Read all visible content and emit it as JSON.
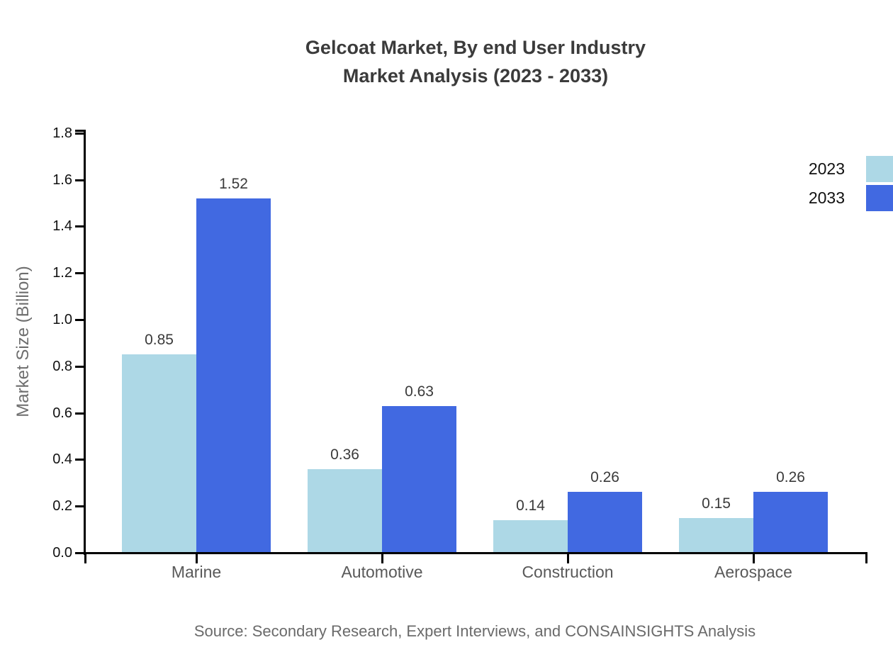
{
  "title": {
    "line1": "Gelcoat Market, By end User Industry",
    "line2": "Market Analysis (2023 - 2033)"
  },
  "legend": {
    "position": "top-right",
    "items": [
      {
        "label": "2023",
        "color": "#ADD8E6"
      },
      {
        "label": "2033",
        "color": "#4169E1"
      }
    ]
  },
  "source": "Source: Secondary Research, Expert Interviews, and CONSAINSIGHTS Analysis",
  "chart_data": {
    "type": "bar",
    "title": "Gelcoat Market, By end User Industry Market Analysis (2023 - 2033)",
    "categories": [
      "Marine",
      "Automotive",
      "Construction",
      "Aerospace"
    ],
    "series": [
      {
        "name": "2023",
        "color": "#ADD8E6",
        "values": [
          0.85,
          0.36,
          0.14,
          0.15
        ]
      },
      {
        "name": "2033",
        "color": "#4169E1",
        "values": [
          1.52,
          0.63,
          0.26,
          0.26
        ]
      }
    ],
    "value_labels": [
      "0.85",
      "1.52",
      "0.36",
      "0.63",
      "0.14",
      "0.26",
      "0.15",
      "0.26"
    ],
    "xlabel": "",
    "ylabel": "Market Size (Billion)",
    "ylim": [
      0.0,
      1.8
    ],
    "ytick_step": 0.2,
    "yticks": [
      "0.0",
      "0.2",
      "0.4",
      "0.6",
      "0.8",
      "1.0",
      "1.2",
      "1.4",
      "1.6",
      "1.8"
    ],
    "grid": false,
    "legend_position": "right"
  },
  "colors": {
    "axis": "#000000",
    "title_text": "#3b3b3b",
    "tick_text": "#111111",
    "category_text": "#595959",
    "muted_text": "#6a6a6a"
  }
}
